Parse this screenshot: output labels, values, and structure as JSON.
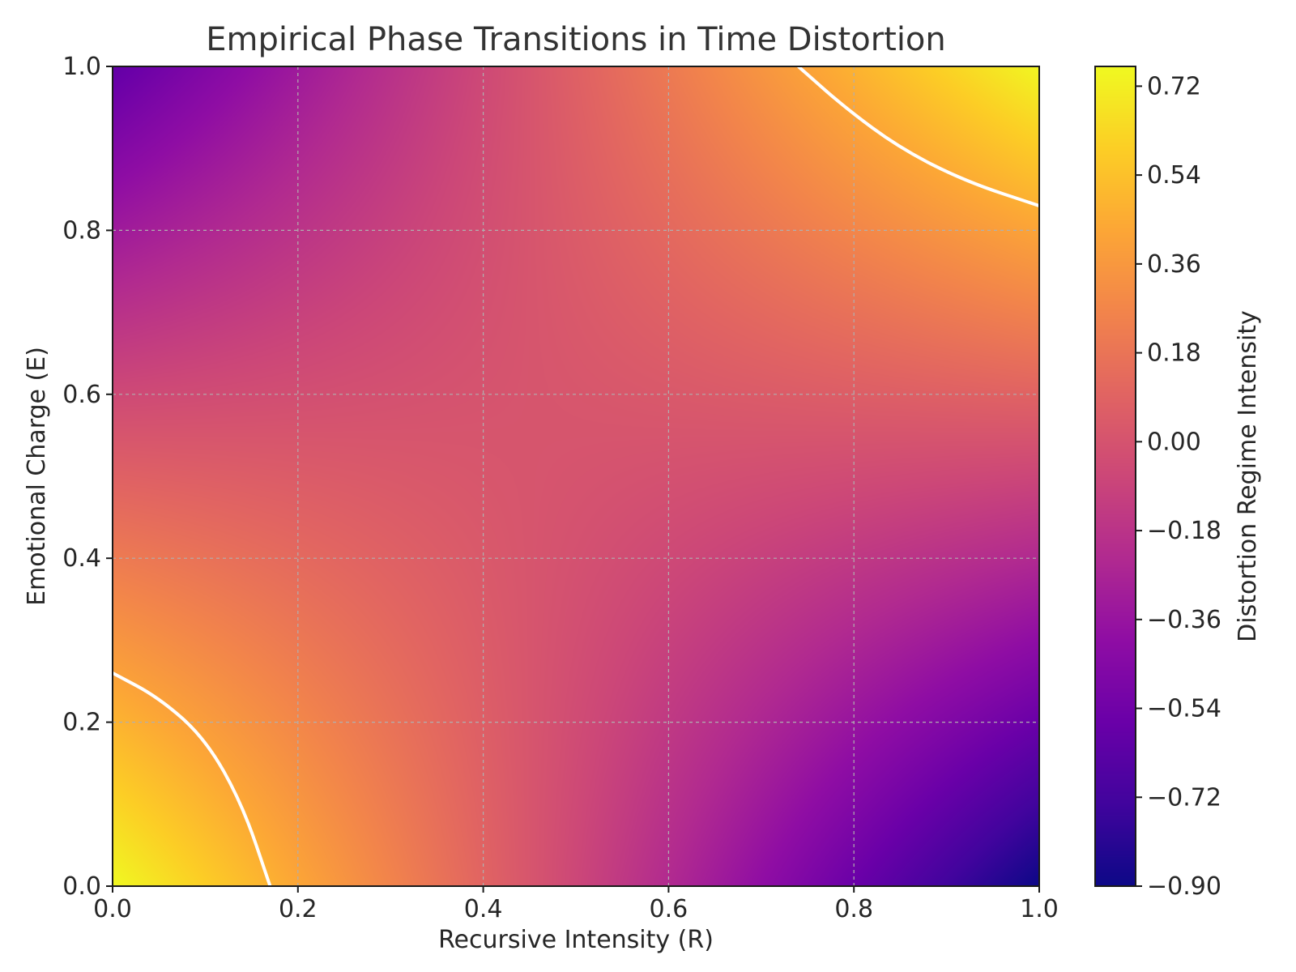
{
  "chart_data": {
    "type": "heatmap",
    "title": "Empirical Phase Transitions in Time Distortion",
    "xlabel": "Recursive Intensity (R)",
    "ylabel": "Emotional Charge (E)",
    "xlim": [
      0.0,
      1.0
    ],
    "ylim": [
      0.0,
      1.0
    ],
    "x_ticks": [
      "0.0",
      "0.2",
      "0.4",
      "0.6",
      "0.8",
      "1.0"
    ],
    "y_ticks": [
      "0.0",
      "0.2",
      "0.4",
      "0.6",
      "0.8",
      "1.0"
    ],
    "grid": true,
    "colormap": "plasma",
    "colorbar": {
      "label": "Distortion Regime Intensity",
      "range": [
        -0.9,
        0.76
      ],
      "ticks": [
        "0.72",
        "0.54",
        "0.36",
        "0.18",
        "0.00",
        "−0.18",
        "−0.36",
        "−0.54",
        "−0.72",
        "−0.90"
      ]
    },
    "corner_values": [
      {
        "R": 0.0,
        "E": 0.0,
        "value": 0.76
      },
      {
        "R": 1.0,
        "E": 0.0,
        "value": -0.9
      },
      {
        "R": 0.0,
        "E": 1.0,
        "value": -0.6
      },
      {
        "R": 1.0,
        "E": 1.0,
        "value": 0.75
      }
    ],
    "saddle_point": {
      "R": 0.42,
      "E": 0.58,
      "value": 0.05
    },
    "threshold_contour": {
      "color": "#ffffff",
      "level": 0.6,
      "segments": [
        [
          [
            0.0,
            0.26
          ],
          [
            0.05,
            0.23
          ],
          [
            0.1,
            0.18
          ],
          [
            0.14,
            0.1
          ],
          [
            0.17,
            0.0
          ]
        ],
        [
          [
            0.74,
            1.0
          ],
          [
            0.79,
            0.95
          ],
          [
            0.85,
            0.9
          ],
          [
            0.92,
            0.86
          ],
          [
            1.0,
            0.83
          ]
        ]
      ]
    }
  }
}
